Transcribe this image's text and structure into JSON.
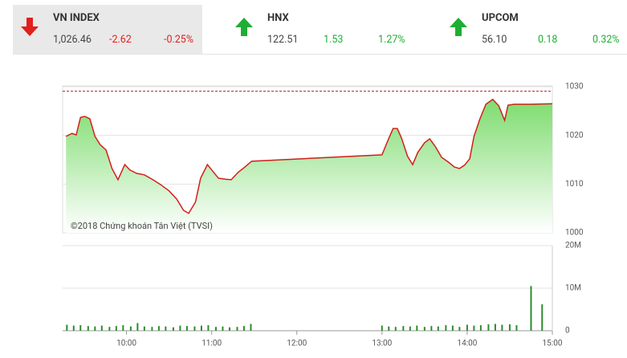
{
  "header": {
    "indices": [
      {
        "name": "VN INDEX",
        "value": "1,026.46",
        "change": "-2.62",
        "percent": "-0.25%"
      },
      {
        "name": "HNX",
        "value": "122.51",
        "change": "1.53",
        "percent": "1.27%"
      },
      {
        "name": "UPCOM",
        "value": "56.10",
        "change": "0.18",
        "percent": "0.32%"
      }
    ]
  },
  "chart_data": [
    {
      "type": "area",
      "annotation": "©2018 Chứng khoán Tân Việt (TVSI)",
      "x": [
        9.29,
        9.36,
        9.41,
        9.46,
        9.51,
        9.57,
        9.63,
        9.69,
        9.76,
        9.83,
        9.9,
        9.98,
        10.04,
        10.12,
        10.21,
        10.31,
        10.4,
        10.5,
        10.59,
        10.67,
        10.73,
        10.81,
        10.87,
        10.95,
        11.01,
        11.08,
        11.16,
        11.23,
        11.31,
        11.39,
        11.47,
        13.0,
        13.07,
        13.13,
        13.18,
        13.23,
        13.3,
        13.36,
        13.42,
        13.5,
        13.56,
        13.63,
        13.7,
        13.78,
        13.85,
        13.91,
        13.97,
        14.03,
        14.08,
        14.15,
        14.22,
        14.3,
        14.37,
        14.44,
        14.48,
        14.55,
        14.74,
        15.0
      ],
      "values": [
        1019.8,
        1020.4,
        1020.1,
        1023.7,
        1023.9,
        1023.4,
        1019.8,
        1018.1,
        1017.0,
        1013.2,
        1010.9,
        1014.0,
        1012.9,
        1012.2,
        1011.9,
        1010.9,
        1009.9,
        1008.6,
        1006.9,
        1004.6,
        1004.0,
        1006.3,
        1011.2,
        1014.0,
        1012.7,
        1011.2,
        1011.0,
        1010.9,
        1012.4,
        1013.5,
        1014.7,
        1016.0,
        1019.0,
        1021.4,
        1021.4,
        1019.4,
        1015.7,
        1014.0,
        1016.5,
        1018.5,
        1019.3,
        1017.6,
        1015.5,
        1014.5,
        1013.5,
        1013.2,
        1013.9,
        1015.2,
        1019.8,
        1023.4,
        1026.4,
        1027.4,
        1026.1,
        1023.1,
        1026.2,
        1026.4,
        1026.4,
        1026.5
      ],
      "color": "#d0201c",
      "ref_line": 1029.08,
      "ref_color": "#b0202a",
      "xlim": [
        9.25,
        15
      ],
      "ylim": [
        1000,
        1030
      ],
      "yticks": [
        1000,
        1010,
        1020,
        1030
      ],
      "grid": true
    },
    {
      "type": "bar",
      "color": "#2e8b2e",
      "x": [
        9.3,
        9.38,
        9.46,
        9.55,
        9.63,
        9.71,
        9.8,
        9.88,
        9.96,
        10.05,
        10.13,
        10.21,
        10.3,
        10.38,
        10.46,
        10.55,
        10.63,
        10.71,
        10.8,
        10.88,
        10.96,
        11.05,
        11.13,
        11.21,
        11.3,
        11.38,
        11.46,
        13.0,
        13.08,
        13.16,
        13.25,
        13.33,
        13.41,
        13.5,
        13.58,
        13.66,
        13.75,
        13.83,
        13.91,
        14.0,
        14.08,
        14.16,
        14.25,
        14.33,
        14.41,
        14.5,
        14.58,
        14.75,
        14.88
      ],
      "values": [
        1.4,
        1.2,
        1.3,
        1.1,
        1.0,
        1.2,
        0.9,
        1.1,
        1.3,
        1.0,
        1.8,
        1.0,
        0.9,
        1.1,
        1.0,
        0.8,
        1.2,
        1.1,
        1.0,
        1.2,
        1.3,
        0.9,
        1.0,
        0.8,
        0.9,
        1.1,
        1.6,
        1.2,
        1.0,
        0.9,
        1.1,
        1.0,
        1.2,
        0.9,
        1.1,
        1.0,
        1.3,
        1.2,
        0.9,
        1.4,
        1.2,
        1.3,
        1.5,
        1.6,
        1.4,
        1.5,
        1.3,
        10.5,
        6.2
      ],
      "xlim": [
        9.25,
        15
      ],
      "ylim": [
        0,
        20
      ],
      "yticks": [
        0,
        {
          "value": 10,
          "label": "10M"
        },
        {
          "value": 20,
          "label": "20M"
        }
      ],
      "xticks": [
        {
          "value": 10,
          "label": "10:00"
        },
        {
          "value": 11,
          "label": "11:00"
        },
        {
          "value": 12,
          "label": "12:00"
        },
        {
          "value": 13,
          "label": "13:00"
        },
        {
          "value": 14,
          "label": "14:00"
        },
        {
          "value": 15,
          "label": "15:00"
        }
      ],
      "grid": true
    }
  ]
}
